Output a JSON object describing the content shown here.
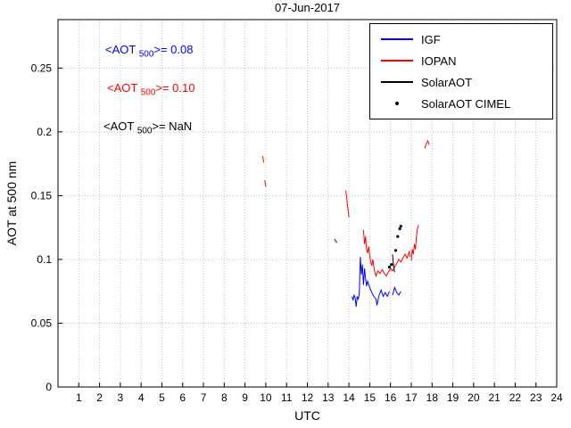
{
  "annotations": [
    {
      "prefix": "<AOT ",
      "sub": "500",
      "suffix": ">= 0.08",
      "color": "#0000ff"
    },
    {
      "prefix": "<AOT ",
      "sub": "500",
      "suffix": ">= 0.10",
      "color": "#ff0000"
    },
    {
      "prefix": "<AOT ",
      "sub": "500",
      "suffix": ">=  NaN",
      "color": "#000000"
    }
  ],
  "legend": {
    "items": [
      {
        "label": "IGF",
        "color": "#0000ff",
        "marker": "line"
      },
      {
        "label": "IOPAN",
        "color": "#ff0000",
        "marker": "line"
      },
      {
        "label": "SolarAOT",
        "color": "#000000",
        "marker": "line"
      },
      {
        "label": "SolarAOT CIMEL",
        "color": "#000000",
        "marker": "dot"
      }
    ]
  },
  "chart_data": {
    "type": "line",
    "title": "07-Jun-2017",
    "xlabel": "UTC",
    "ylabel": "AOT at 500 nm",
    "xlim": [
      0,
      24
    ],
    "ylim": [
      0,
      0.288
    ],
    "grid": true,
    "legend_position": "top-right",
    "xticks": [
      1,
      2,
      3,
      4,
      5,
      6,
      7,
      8,
      9,
      10,
      11,
      12,
      13,
      14,
      15,
      16,
      17,
      18,
      19,
      20,
      21,
      22,
      23,
      24
    ],
    "yticks": [
      {
        "v": 0,
        "label": "0"
      },
      {
        "v": 0.05,
        "label": "0.05"
      },
      {
        "v": 0.1,
        "label": "0.1"
      },
      {
        "v": 0.15,
        "label": "0.15"
      },
      {
        "v": 0.2,
        "label": "0.2"
      },
      {
        "v": 0.25,
        "label": "0.25"
      }
    ],
    "series": [
      {
        "name": "IGF",
        "color": "#0000ff",
        "style": "line",
        "mean_aot500": 0.08,
        "segments": [
          [
            [
              13.3,
              0.116
            ],
            [
              13.42,
              0.113
            ]
          ],
          [
            [
              14.15,
              0.071
            ],
            [
              14.2,
              0.068
            ],
            [
              14.25,
              0.072
            ],
            [
              14.3,
              0.07
            ],
            [
              14.35,
              0.063
            ],
            [
              14.4,
              0.071
            ],
            [
              14.45,
              0.069
            ],
            [
              14.5,
              0.073
            ],
            [
              14.55,
              0.102
            ],
            [
              14.6,
              0.088
            ],
            [
              14.65,
              0.096
            ],
            [
              14.7,
              0.08
            ],
            [
              14.75,
              0.093
            ],
            [
              14.8,
              0.085
            ],
            [
              14.85,
              0.079
            ],
            [
              14.9,
              0.083
            ],
            [
              15.0,
              0.078
            ],
            [
              15.1,
              0.074
            ],
            [
              15.2,
              0.071
            ],
            [
              15.3,
              0.069
            ],
            [
              15.35,
              0.064
            ],
            [
              15.45,
              0.072
            ],
            [
              15.55,
              0.076
            ],
            [
              15.65,
              0.071
            ],
            [
              15.75,
              0.074
            ],
            [
              15.85,
              0.071
            ],
            [
              15.95,
              0.075
            ]
          ],
          [
            [
              16.1,
              0.072
            ],
            [
              16.2,
              0.078
            ],
            [
              16.3,
              0.074
            ],
            [
              16.4,
              0.072
            ],
            [
              16.5,
              0.075
            ]
          ]
        ]
      },
      {
        "name": "IOPAN",
        "color": "#ff0000",
        "style": "line",
        "mean_aot500": 0.1,
        "segments": [
          [
            [
              9.85,
              0.181
            ],
            [
              9.9,
              0.176
            ]
          ],
          [
            [
              9.95,
              0.162
            ],
            [
              10.0,
              0.157
            ]
          ],
          [
            [
              13.85,
              0.154
            ],
            [
              13.9,
              0.147
            ],
            [
              13.95,
              0.14
            ],
            [
              14.0,
              0.133
            ]
          ],
          [
            [
              14.7,
              0.123
            ],
            [
              14.75,
              0.112
            ],
            [
              14.8,
              0.118
            ],
            [
              14.85,
              0.108
            ],
            [
              14.9,
              0.105
            ],
            [
              14.95,
              0.11
            ],
            [
              15.0,
              0.103
            ],
            [
              15.05,
              0.098
            ],
            [
              15.1,
              0.095
            ],
            [
              15.15,
              0.1
            ],
            [
              15.2,
              0.094
            ],
            [
              15.25,
              0.09
            ],
            [
              15.3,
              0.087
            ],
            [
              15.4,
              0.091
            ],
            [
              15.5,
              0.089
            ],
            [
              15.6,
              0.092
            ],
            [
              15.7,
              0.089
            ],
            [
              15.8,
              0.087
            ],
            [
              15.9,
              0.09
            ],
            [
              16.0,
              0.093
            ],
            [
              16.1,
              0.091
            ],
            [
              16.2,
              0.094
            ],
            [
              16.3,
              0.097
            ],
            [
              16.4,
              0.1
            ],
            [
              16.5,
              0.098
            ],
            [
              16.6,
              0.101
            ],
            [
              16.7,
              0.104
            ],
            [
              16.8,
              0.101
            ],
            [
              16.9,
              0.106
            ],
            [
              16.95,
              0.102
            ]
          ],
          [
            [
              17.0,
              0.099
            ],
            [
              17.05,
              0.108
            ],
            [
              17.1,
              0.104
            ],
            [
              17.15,
              0.112
            ],
            [
              17.2,
              0.108
            ],
            [
              17.25,
              0.118
            ],
            [
              17.3,
              0.124
            ],
            [
              17.35,
              0.127
            ]
          ],
          [
            [
              17.65,
              0.187
            ],
            [
              17.7,
              0.19
            ],
            [
              17.8,
              0.193
            ],
            [
              17.85,
              0.19
            ]
          ]
        ]
      },
      {
        "name": "SolarAOT",
        "color": "#000000",
        "style": "line",
        "mean_aot500": null,
        "segments": [
          [
            [
              16.1,
              0.104
            ],
            [
              16.13,
              0.098
            ],
            [
              16.17,
              0.093
            ],
            [
              16.2,
              0.09
            ]
          ]
        ]
      },
      {
        "name": "SolarAOT CIMEL",
        "color": "#000000",
        "style": "dots",
        "segments": [
          [
            [
              15.95,
              0.094
            ],
            [
              16.05,
              0.096
            ],
            [
              16.25,
              0.107
            ],
            [
              16.35,
              0.118
            ],
            [
              16.45,
              0.124
            ],
            [
              16.5,
              0.126
            ]
          ]
        ]
      }
    ]
  }
}
